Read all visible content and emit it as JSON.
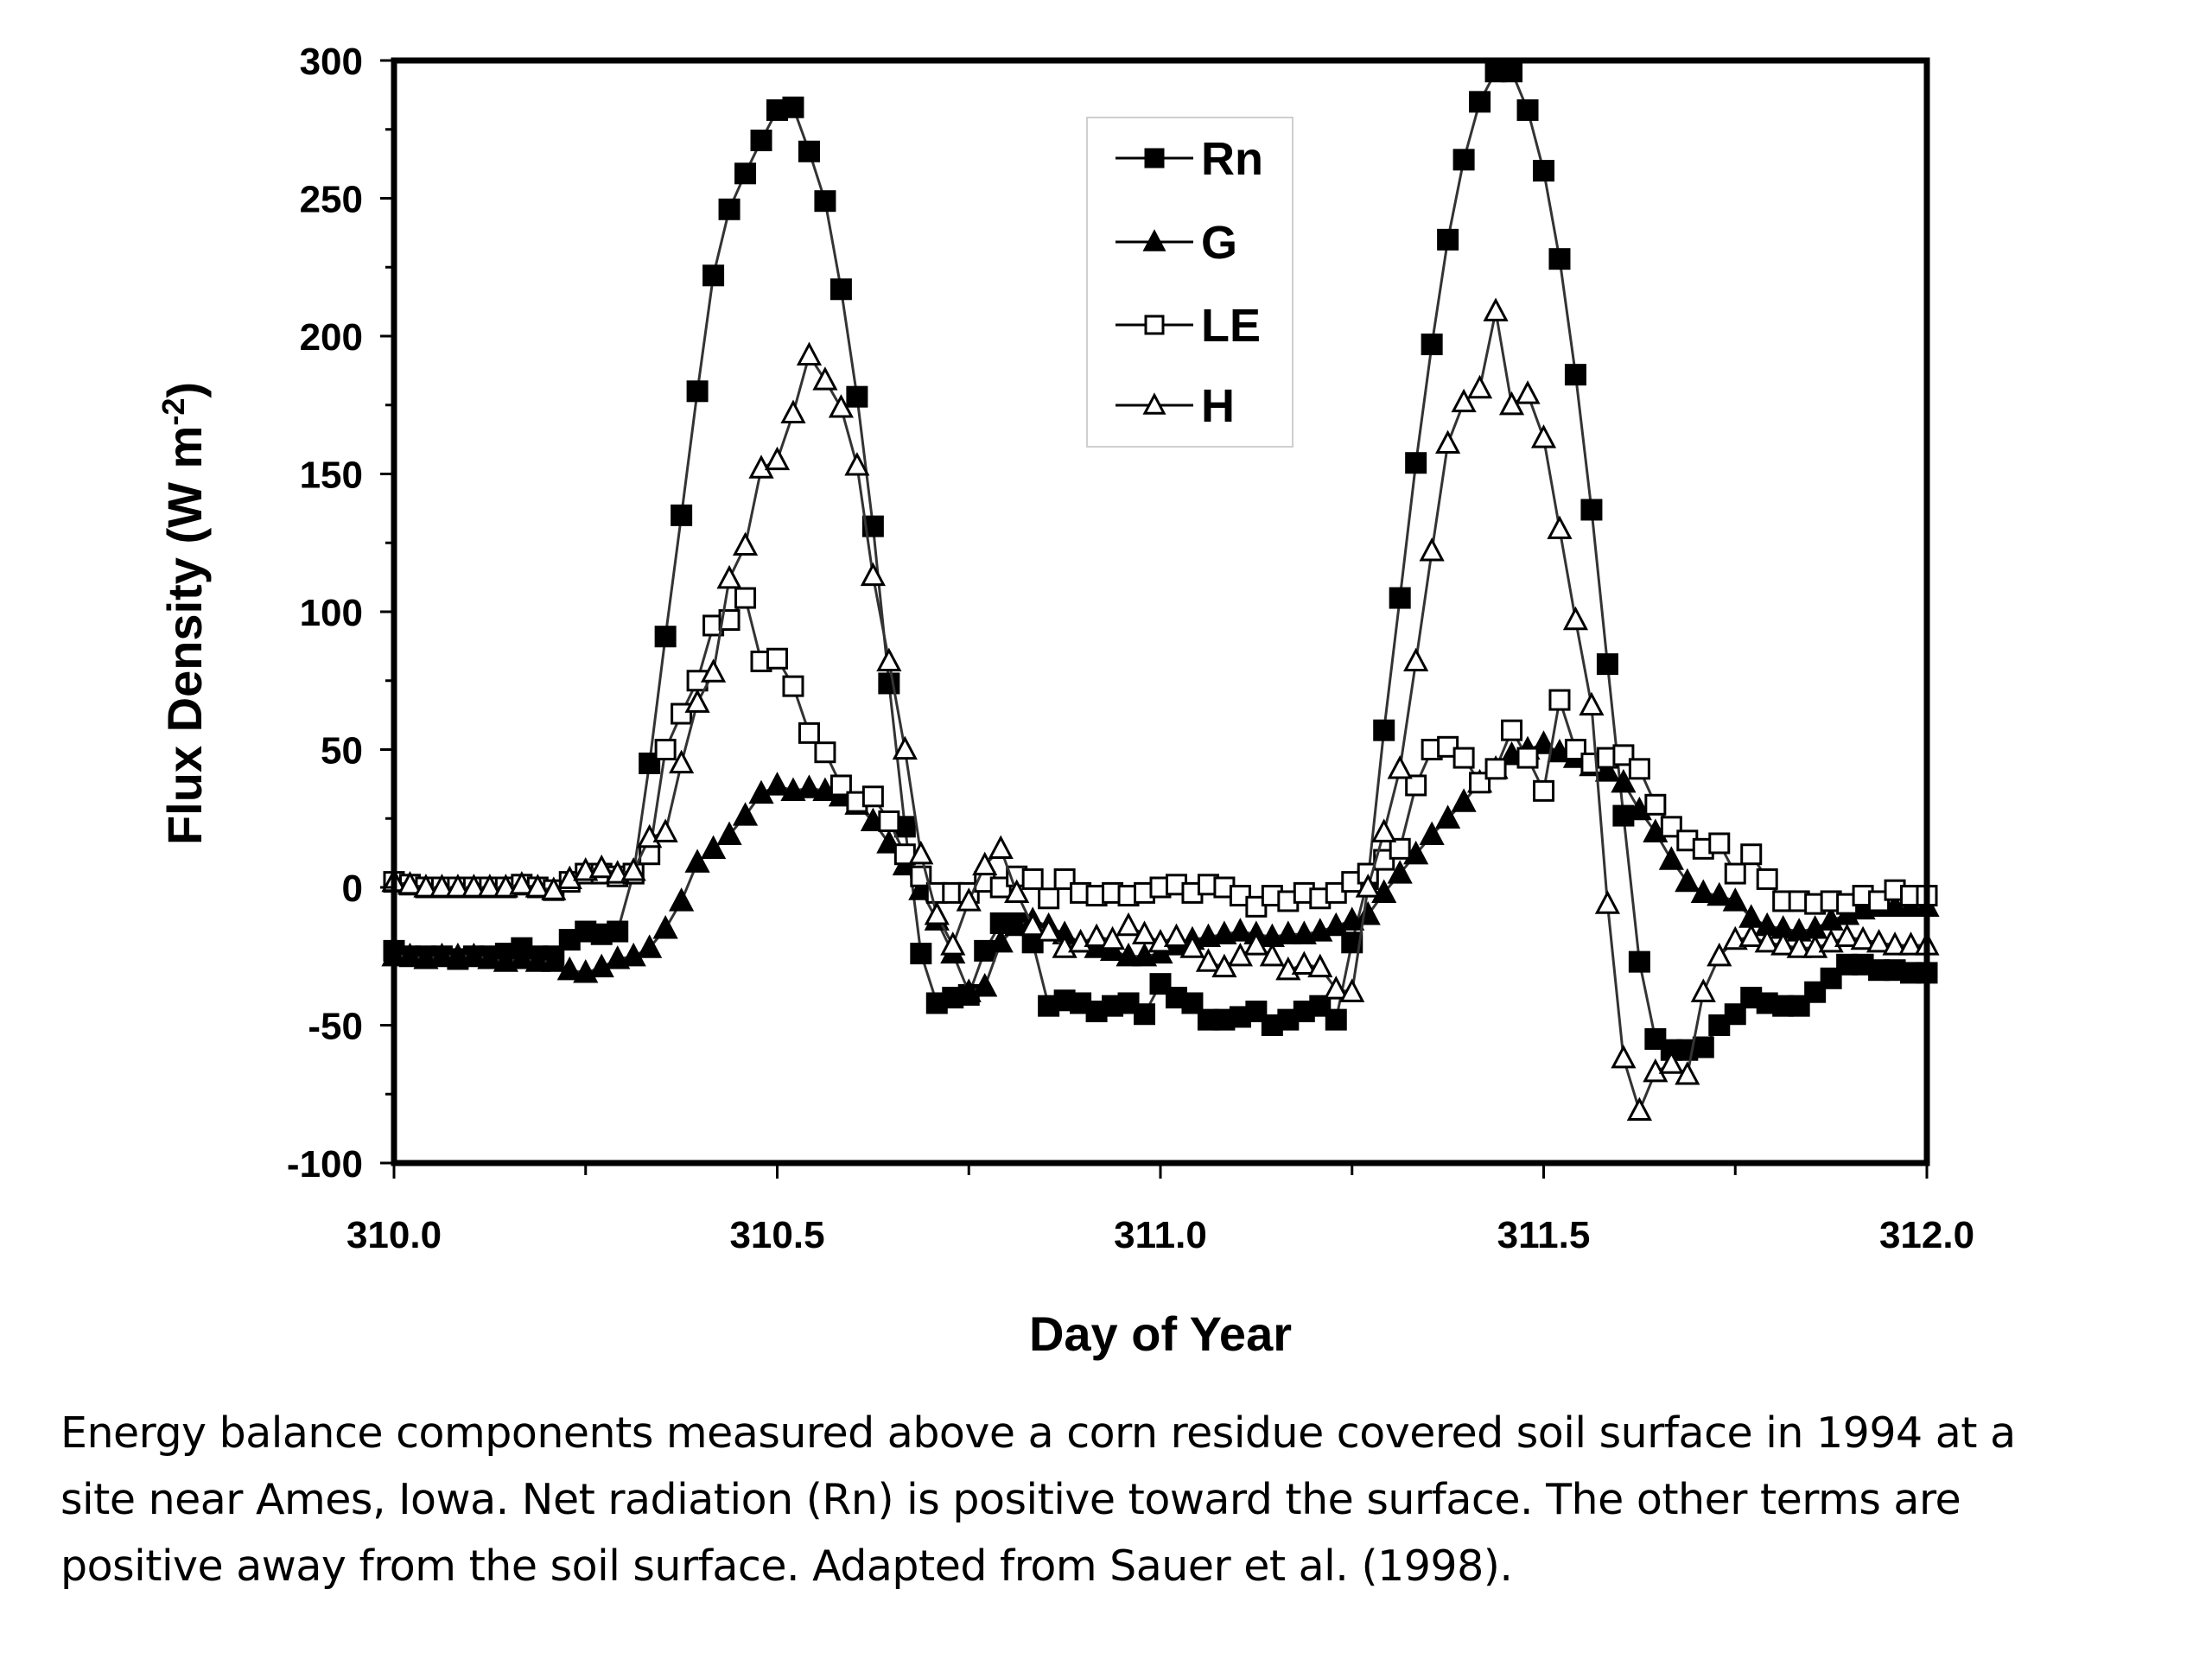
{
  "chart_data": {
    "type": "line",
    "title": "",
    "xlabel": "Day of Year",
    "ylabel": "Flux Density (W m-2)",
    "ylabel_parts": {
      "main": "Flux Density (W m",
      "superscript": "-2",
      "close": ")"
    },
    "xlim": [
      310.0,
      312.0
    ],
    "ylim": [
      -100,
      300
    ],
    "xticks": [
      310.0,
      310.5,
      311.0,
      311.5,
      312.0
    ],
    "xtick_labels": [
      "310.0",
      "310.5",
      "311.0",
      "311.5",
      "312.0"
    ],
    "yticks": [
      300,
      250,
      200,
      150,
      100,
      50,
      0,
      -50,
      -100
    ],
    "ytick_labels": [
      "300",
      "250",
      "200",
      "150",
      "100",
      "50",
      "0",
      "-50",
      "-100"
    ],
    "grid": false,
    "legend_position": "top-center",
    "x_start": 310.0,
    "x_step": 0.0208333,
    "series": [
      {
        "name": "Rn",
        "marker": "filled-square",
        "values": [
          -23,
          -25,
          -25,
          -25,
          -26,
          -25,
          -25,
          -24,
          -22,
          -25,
          -25,
          -19,
          -16,
          -17,
          -16,
          5,
          45,
          91,
          135,
          180,
          222,
          246,
          259,
          271,
          282,
          283,
          267,
          249,
          217,
          178,
          131,
          74,
          22,
          -24,
          -42,
          -40,
          -39,
          -23,
          -13,
          -13,
          -20,
          -43,
          -41,
          -42,
          -45,
          -43,
          -42,
          -46,
          -35,
          -40,
          -42,
          -48,
          -48,
          -47,
          -45,
          -50,
          -48,
          -45,
          -43,
          -48,
          -20,
          3,
          57,
          105,
          154,
          197,
          235,
          264,
          285,
          296,
          296,
          282,
          260,
          228,
          186,
          137,
          81,
          26,
          -27,
          -55,
          -59,
          -59,
          -58,
          -50,
          -46,
          -40,
          -42,
          -43,
          -43,
          -38,
          -33,
          -28,
          -28,
          -30,
          -30,
          -31,
          -31
        ]
      },
      {
        "name": "G",
        "marker": "filled-triangle",
        "values": [
          -25,
          -25,
          -26,
          -25,
          -25,
          -25,
          -26,
          -27,
          -26,
          -27,
          -27,
          -30,
          -31,
          -29,
          -26,
          -25,
          -22,
          -15,
          -5,
          9,
          14,
          19,
          26,
          34,
          37,
          35,
          36,
          35,
          33,
          30,
          24,
          16,
          8,
          -1,
          -12,
          -24,
          -38,
          -36,
          -20,
          -14,
          -12,
          -14,
          -17,
          -20,
          -22,
          -23,
          -25,
          -25,
          -24,
          -21,
          -19,
          -18,
          -17,
          -16,
          -17,
          -18,
          -17,
          -17,
          -16,
          -14,
          -12,
          -10,
          -2,
          5,
          12,
          19,
          25,
          31,
          38,
          43,
          48,
          50,
          52,
          49,
          47,
          44,
          42,
          38,
          28,
          20,
          10,
          2,
          -2,
          -3,
          -5,
          -11,
          -14,
          -15,
          -16,
          -15,
          -12,
          -10,
          -8,
          -7,
          -7,
          -7,
          -7
        ]
      },
      {
        "name": "LE",
        "marker": "open-square",
        "values": [
          2,
          1,
          0,
          0,
          0,
          0,
          0,
          0,
          1,
          0,
          -1,
          2,
          5,
          5,
          4,
          5,
          12,
          50,
          63,
          75,
          95,
          97,
          105,
          82,
          83,
          73,
          56,
          49,
          37,
          31,
          33,
          24,
          12,
          4,
          -2,
          -2,
          -2,
          2,
          0,
          4,
          3,
          -4,
          3,
          -2,
          -3,
          -2,
          -3,
          -2,
          0,
          1,
          -2,
          1,
          0,
          -3,
          -7,
          -3,
          -5,
          -2,
          -4,
          -2,
          2,
          5,
          10,
          14,
          37,
          50,
          51,
          47,
          38,
          43,
          57,
          47,
          35,
          68,
          50,
          45,
          47,
          48,
          43,
          30,
          22,
          17,
          14,
          16,
          5,
          12,
          3,
          -5,
          -5,
          -6,
          -5,
          -6,
          -3,
          -5,
          -1,
          -3,
          -3
        ]
      },
      {
        "name": "H",
        "marker": "open-triangle",
        "values": [
          2,
          1,
          0,
          0,
          0,
          0,
          0,
          0,
          1,
          0,
          -1,
          3,
          6,
          7,
          5,
          6,
          18,
          20,
          45,
          67,
          78,
          112,
          124,
          152,
          155,
          172,
          193,
          184,
          174,
          153,
          113,
          82,
          50,
          12,
          -10,
          -21,
          -5,
          8,
          14,
          -2,
          -14,
          -16,
          -22,
          -20,
          -18,
          -19,
          -14,
          -17,
          -20,
          -18,
          -22,
          -27,
          -29,
          -25,
          -21,
          -25,
          -30,
          -28,
          -29,
          -37,
          -38,
          0,
          20,
          43,
          82,
          122,
          161,
          176,
          181,
          209,
          175,
          179,
          163,
          130,
          97,
          66,
          -6,
          -62,
          -81,
          -67,
          -64,
          -68,
          -38,
          -25,
          -19,
          -18,
          -20,
          -21,
          -22,
          -22,
          -20,
          -18,
          -19,
          -20,
          -21,
          -21,
          -21
        ]
      }
    ],
    "legend": [
      {
        "name": "Rn",
        "marker": "filled-square"
      },
      {
        "name": "G",
        "marker": "filled-triangle"
      },
      {
        "name": "LE",
        "marker": "open-square"
      },
      {
        "name": "H",
        "marker": "open-triangle"
      }
    ]
  },
  "caption": {
    "lines": [
      "Energy balance components measured above a corn residue covered soil surface in 1994 at a",
      "site near Ames, Iowa.  Net radiation (Rn) is positive toward the surface.  The other terms are",
      "positive away from the soil surface.  Adapted from Sauer et al. (1998)."
    ]
  }
}
